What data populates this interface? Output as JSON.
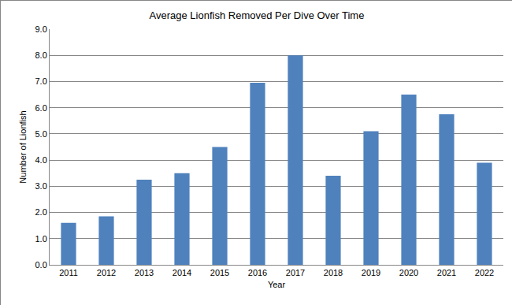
{
  "chart_data": {
    "type": "bar",
    "title": "Average Lionfish Removed Per Dive Over Time",
    "x_label": "Year",
    "y_label": "Number of Lionfish",
    "categories": [
      "2011",
      "2012",
      "2013",
      "2014",
      "2015",
      "2016",
      "2017",
      "2018",
      "2019",
      "2020",
      "2021",
      "2022"
    ],
    "values": [
      1.6,
      1.85,
      3.25,
      3.5,
      4.5,
      6.95,
      8.0,
      3.4,
      5.1,
      6.5,
      5.75,
      3.9
    ],
    "color": "#4f81bd",
    "ylim": [
      0,
      9
    ],
    "yticks": [
      {
        "value": 0,
        "label": "0.0"
      },
      {
        "value": 1,
        "label": "1.0"
      },
      {
        "value": 2,
        "label": "2.0"
      },
      {
        "value": 3,
        "label": "3.0"
      },
      {
        "value": 4,
        "label": "4.0"
      },
      {
        "value": 5,
        "label": "5.0"
      },
      {
        "value": 6,
        "label": "6.0"
      },
      {
        "value": 7,
        "label": "7.0"
      },
      {
        "value": 8,
        "label": "8.0"
      },
      {
        "value": 9,
        "label": "9.0"
      }
    ],
    "grid": true
  }
}
